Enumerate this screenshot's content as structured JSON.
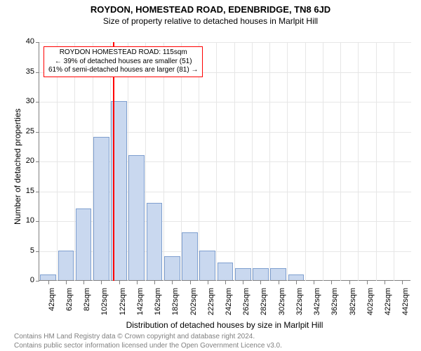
{
  "title": "ROYDON, HOMESTEAD ROAD, EDENBRIDGE, TN8 6JD",
  "subtitle": "Size of property relative to detached houses in Marlpit Hill",
  "title_fontsize": 13,
  "subtitle_fontsize": 12,
  "chart": {
    "type": "histogram",
    "background_color": "#ffffff",
    "grid_color": "#e6e6e6",
    "axis_color": "#808080",
    "bar_fill": "#c9d8ef",
    "bar_stroke": "#7f9fcf",
    "marker_color": "#ff0000",
    "annotation_border": "#ff0000",
    "tick_fontsize": 11,
    "axis_title_fontsize": 12,
    "x_categories": [
      "42sqm",
      "62sqm",
      "82sqm",
      "102sqm",
      "122sqm",
      "142sqm",
      "162sqm",
      "182sqm",
      "202sqm",
      "222sqm",
      "242sqm",
      "262sqm",
      "282sqm",
      "302sqm",
      "322sqm",
      "342sqm",
      "362sqm",
      "382sqm",
      "402sqm",
      "422sqm",
      "442sqm"
    ],
    "values": [
      1,
      5,
      12,
      24,
      30,
      21,
      13,
      4,
      8,
      5,
      3,
      2,
      2,
      2,
      1,
      0,
      0,
      0,
      0,
      0,
      0
    ],
    "ylim": [
      0,
      40
    ],
    "ytick_step": 5,
    "ylabel_title": "Number of detached properties",
    "xlabel_title": "Distribution of detached houses by size in Marlpit Hill",
    "bar_width_ratio": 0.9,
    "marker_x_value": 115,
    "x_start": 42,
    "x_step": 20,
    "annotation": {
      "line1": "ROYDON HOMESTEAD ROAD: 115sqm",
      "line2": "← 39% of detached houses are smaller (51)",
      "line3": "61% of semi-detached houses are larger (81) →",
      "fontsize": 10
    }
  },
  "footer": {
    "line1": "Contains HM Land Registry data © Crown copyright and database right 2024.",
    "line2": "Contains public sector information licensed under the Open Government Licence v3.0.",
    "color": "#808080",
    "fontsize": 10
  }
}
